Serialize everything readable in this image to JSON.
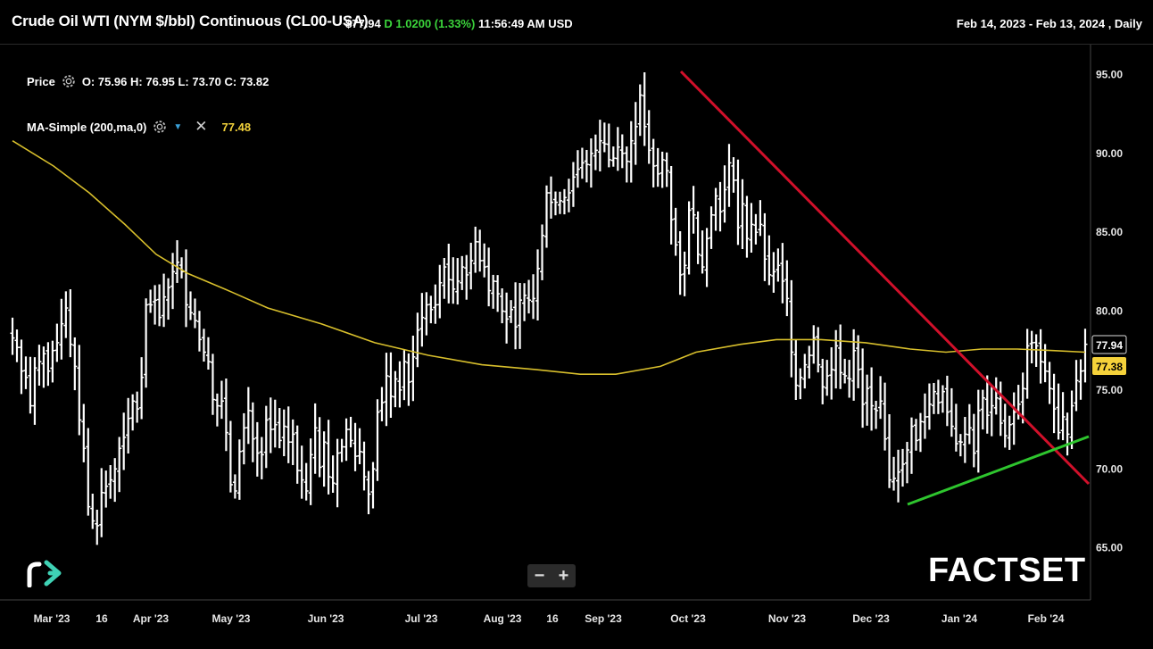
{
  "header": {
    "title": "Crude Oil WTI (NYM $/bbl) Continuous (CL00-USA)",
    "last_price": "$77.94",
    "flag": "D",
    "change": "1.0200",
    "change_pct": "(1.33%)",
    "time": "11:56:49 AM USD",
    "date_range": "Feb 14, 2023 - Feb 13, 2024 , Daily"
  },
  "legend": {
    "price_label": "Price",
    "ohlc": "O: 75.96  H: 76.95  L: 73.70  C: 73.82",
    "ma_label": "MA-Simple (200,ma,0)",
    "ma_value": "77.48"
  },
  "tags": {
    "price": "77.94",
    "ma": "77.38"
  },
  "controls": {
    "zoom_out": "−",
    "zoom_in": "+"
  },
  "branding": {
    "factset": "FACTSET"
  },
  "colors": {
    "background": "#000000",
    "bars": "#ffffff",
    "ma": "#d8bf2c",
    "resistance": "#d0102a",
    "support": "#2ec52e",
    "up": "#3bd43b"
  },
  "chart_data": {
    "type": "ohlc",
    "ylim": [
      62.5,
      97.5
    ],
    "y_ticks": [
      "95.00",
      "90.00",
      "85.00",
      "80.00",
      "75.00",
      "70.00",
      "65.00"
    ],
    "x_ticks": [
      "Mar '23",
      "16",
      "Apr '23",
      "May '23",
      "Jun '23",
      "Jul '23",
      "Aug '23",
      "16",
      "Sep '23",
      "Oct '23",
      "Nov '23",
      "Dec '23",
      "Jan '24",
      "Feb '24"
    ],
    "closes": [
      78.3,
      77.7,
      76.2,
      75.8,
      74.0,
      76.4,
      76.8,
      77.3,
      76.2,
      77.5,
      78.0,
      79.2,
      80.2,
      77.9,
      76.5,
      73.1,
      71.3,
      67.6,
      66.7,
      66.4,
      68.5,
      68.9,
      69.3,
      70.0,
      71.3,
      72.0,
      73.2,
      74.3,
      73.8,
      75.8,
      80.4,
      80.4,
      80.7,
      79.6,
      80.9,
      81.5,
      82.5,
      83.1,
      82.5,
      80.4,
      79.9,
      79.4,
      78.2,
      77.4,
      76.8,
      74.4,
      74.0,
      74.3,
      72.3,
      69.0,
      68.6,
      71.1,
      72.6,
      73.7,
      71.9,
      71.0,
      70.9,
      73.1,
      72.5,
      72.8,
      71.8,
      72.7,
      71.7,
      72.2,
      69.9,
      69.3,
      68.6,
      70.9,
      72.6,
      70.1,
      71.7,
      69.5,
      69.1,
      71.0,
      71.4,
      72.5,
      71.8,
      70.8,
      71.1,
      69.5,
      68.4,
      70.0,
      73.6,
      74.2,
      75.9,
      74.6,
      75.7,
      75.0,
      76.8,
      75.5,
      77.1,
      78.8,
      79.6,
      80.4,
      80.1,
      80.4,
      81.8,
      82.8,
      82.0,
      81.4,
      81.9,
      82.8,
      82.3,
      83.2,
      84.4,
      83.2,
      82.8,
      81.3,
      81.9,
      81.1,
      80.0,
      79.5,
      80.1,
      79.0,
      80.7,
      81.0,
      80.7,
      80.8,
      82.7,
      84.8,
      87.5,
      86.9,
      86.9,
      87.0,
      87.2,
      87.5,
      88.5,
      89.0,
      89.4,
      89.3,
      90.0,
      90.2,
      90.8,
      90.6,
      89.6,
      89.7,
      90.4,
      90.0,
      89.5,
      90.8,
      91.7,
      93.7,
      91.7,
      90.2,
      89.2,
      88.7,
      89.6,
      88.9,
      85.8,
      84.2,
      82.3,
      82.9,
      86.4,
      86.1,
      83.6,
      82.8,
      84.6,
      86.1,
      87.3,
      86.3,
      87.7,
      89.4,
      88.3,
      85.3,
      86.8,
      84.6,
      85.5,
      85.0,
      85.5,
      83.3,
      82.3,
      82.5,
      82.9,
      81.9,
      80.8,
      77.4,
      75.3,
      75.8,
      76.6,
      77.2,
      78.3,
      76.6,
      75.2,
      75.9,
      76.3,
      77.8,
      76.1,
      75.9,
      75.7,
      77.5,
      76.3,
      74.1,
      75.1,
      74.0,
      73.7,
      74.3,
      71.9,
      69.3,
      69.4,
      69.8,
      70.3,
      71.2,
      72.7,
      71.8,
      73.0,
      73.3,
      74.1,
      74.9,
      74.2,
      74.9,
      73.6,
      72.7,
      71.6,
      71.7,
      72.2,
      72.6,
      71.0,
      73.7,
      74.5,
      73.4,
      74.0,
      74.5,
      72.9,
      72.1,
      72.8,
      73.6,
      74.1,
      75.1,
      77.8,
      78.0,
      77.8,
      76.8,
      76.2,
      75.1,
      73.8,
      72.3,
      73.3,
      72.2,
      74.0,
      75.6,
      76.2,
      77.9
    ]
  }
}
